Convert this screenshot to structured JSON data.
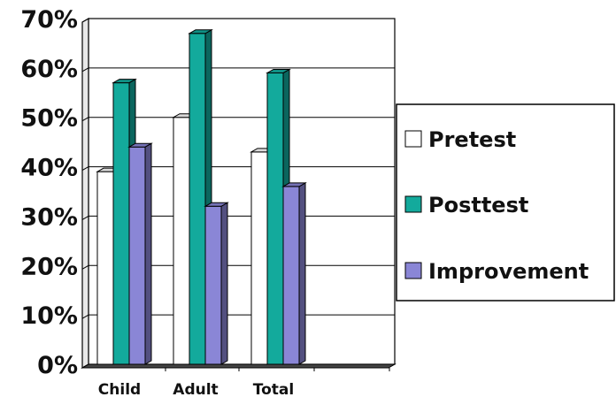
{
  "chart_data": {
    "type": "bar",
    "style": "3d-clustered-column",
    "categories": [
      "Child",
      "Adult",
      "Total"
    ],
    "series": [
      {
        "name": "Pretest",
        "values": [
          39,
          50,
          43
        ],
        "color": "#ffffff"
      },
      {
        "name": "Posttest",
        "values": [
          57,
          67,
          59
        ],
        "color": "#13aa9c"
      },
      {
        "name": "Improvement",
        "values": [
          44,
          32,
          36
        ],
        "color": "#8a86d6"
      }
    ],
    "ylim": [
      0,
      70
    ],
    "ytick_step": 10,
    "ytick_labels": [
      "0%",
      "10%",
      "20%",
      "30%",
      "40%",
      "50%",
      "60%",
      "70%"
    ],
    "grid": true,
    "legend": "right"
  }
}
